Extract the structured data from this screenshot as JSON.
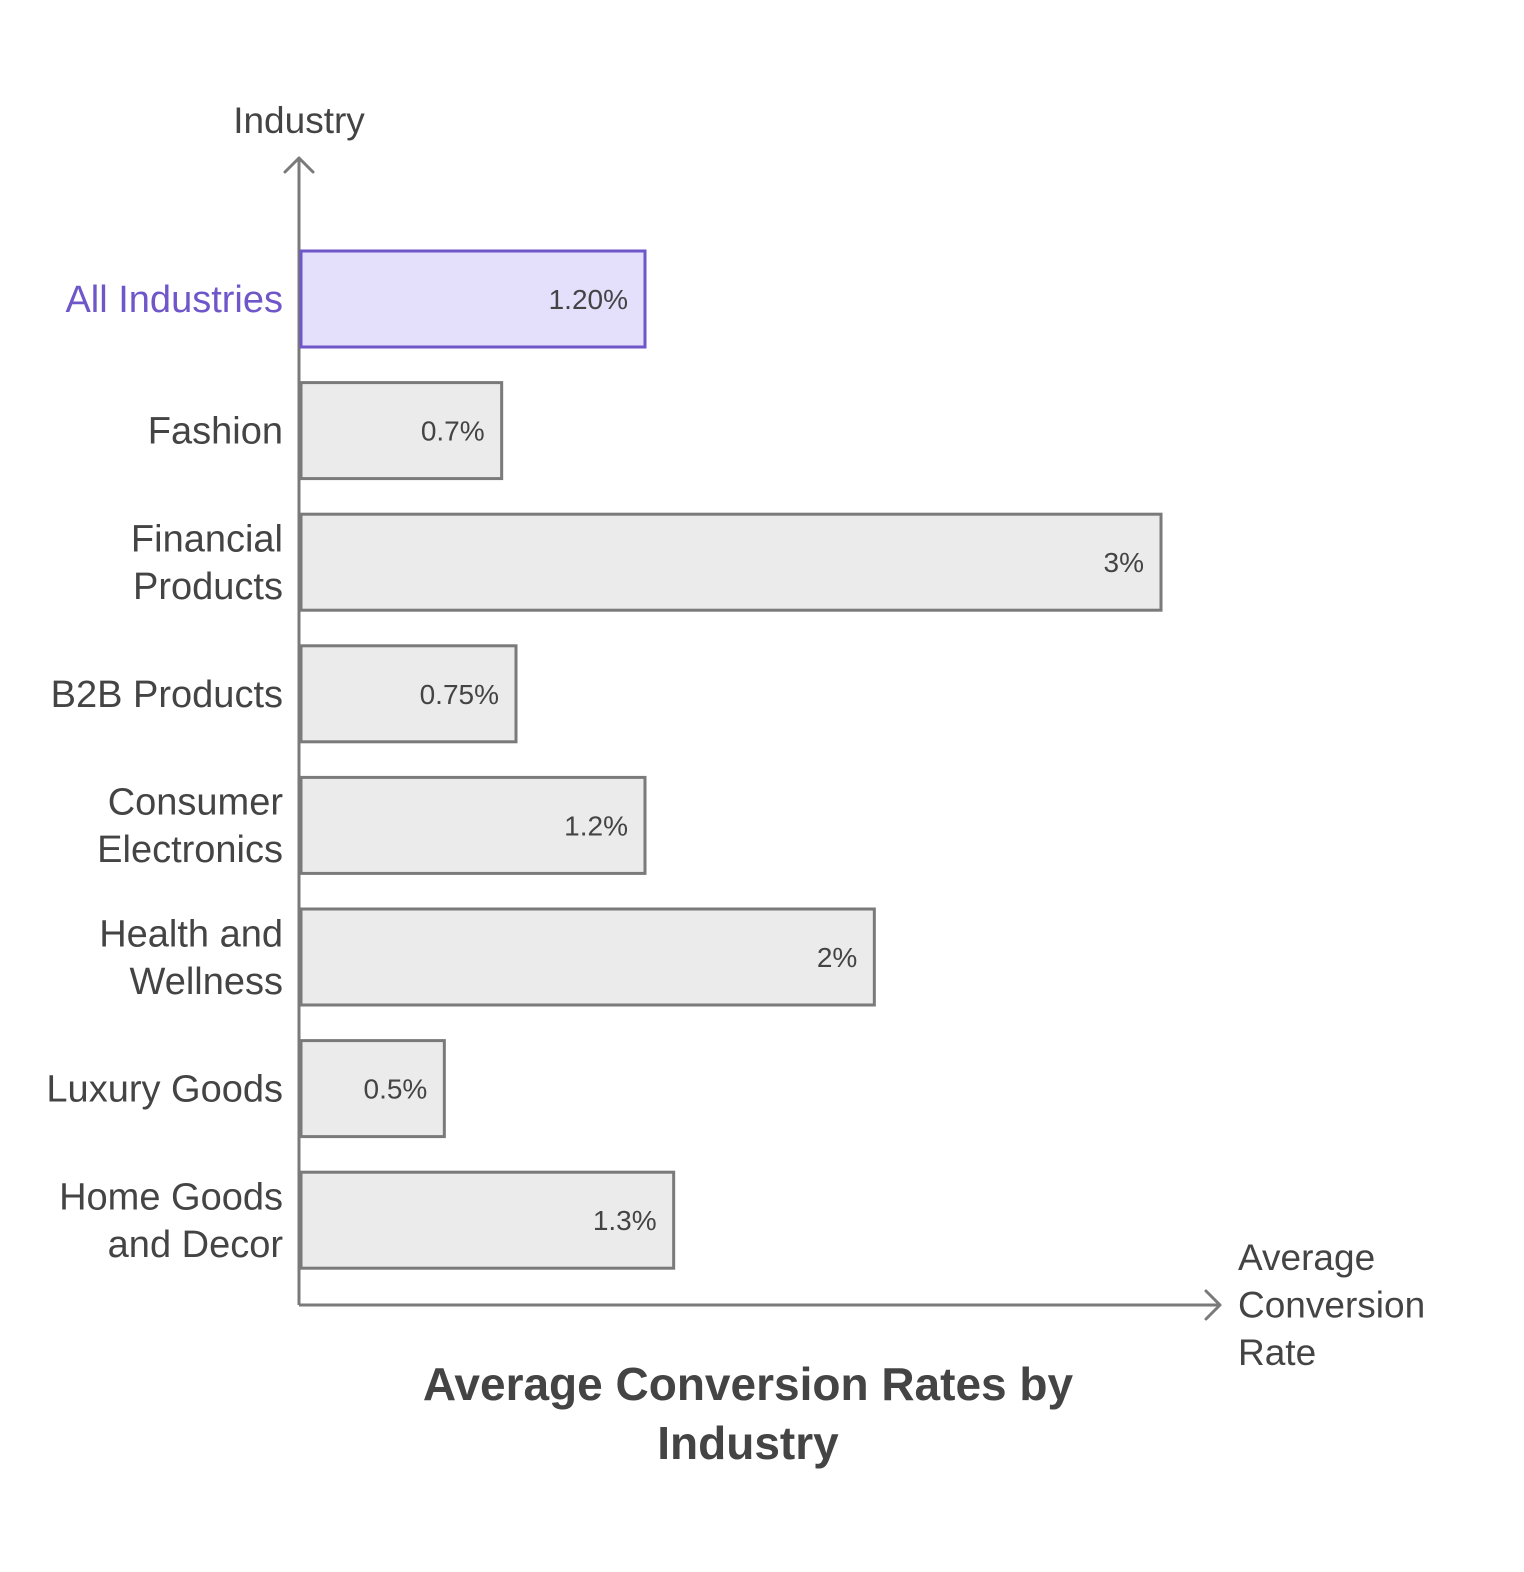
{
  "chart_data": {
    "type": "bar",
    "orientation": "horizontal",
    "title": "Average Conversion Rates by Industry",
    "ylabel": "Industry",
    "xlabel": "Average Conversion Rate",
    "categories": [
      "All Industries",
      "Fashion",
      "Financial Products",
      "B2B Products",
      "Consumer Electronics",
      "Health and Wellness",
      "Luxury Goods",
      "Home Goods and Decor"
    ],
    "values": [
      1.2,
      0.7,
      3,
      0.75,
      1.2,
      2,
      0.5,
      1.3
    ],
    "data_labels": [
      "1.20%",
      "0.7%",
      "3%",
      "0.75%",
      "1.2%",
      "2%",
      "0.5%",
      "1.3%"
    ],
    "highlight_category": "All Industries",
    "xlim": [
      0,
      3
    ],
    "grid": false,
    "colors": {
      "bar_fill": "#ebebeb",
      "bar_stroke": "#7a7a7a",
      "highlight_fill": "#e4e0fc",
      "highlight_stroke": "#6f56c9",
      "highlight_text": "#6f56c9",
      "axis": "#7a7a7a",
      "text": "#444444"
    }
  }
}
